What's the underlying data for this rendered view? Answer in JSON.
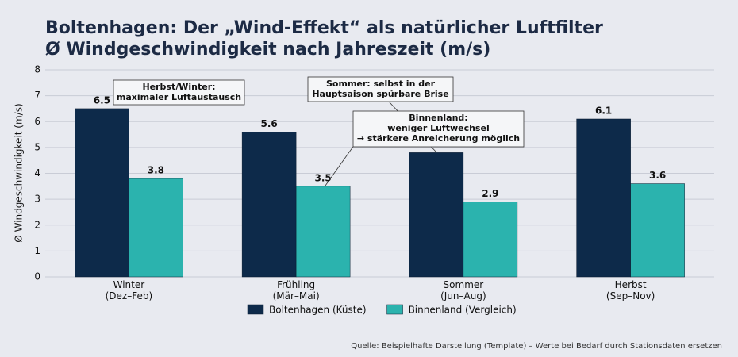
{
  "chart_data": {
    "type": "bar",
    "title": "Boltenhagen: Der „Wind-Effekt“ als natürlicher Luftfilter\nØ Windgeschwindigkeit nach Jahreszeit (m/s)",
    "y_label": "Ø Windgeschwindigkeit (m/s)",
    "categories": [
      "Winter\n(Dez–Feb)",
      "Frühling\n(Mär–Mai)",
      "Sommer\n(Jun–Aug)",
      "Herbst\n(Sep–Nov)"
    ],
    "series": [
      {
        "name": "Boltenhagen (Küste)",
        "color": "#0d2a4a",
        "values": [
          6.5,
          5.6,
          4.8,
          6.1
        ],
        "value_labels": [
          "6.5",
          "5.6",
          null,
          "6.1"
        ]
      },
      {
        "name": "Binnenland (Vergleich)",
        "color": "#2bb3ae",
        "values": [
          3.8,
          3.5,
          2.9,
          3.6
        ]
      }
    ],
    "ylim": [
      0,
      8
    ],
    "yticks": [
      0,
      1,
      2,
      3,
      4,
      5,
      6,
      7,
      8
    ],
    "grid": true,
    "legend": "bottom",
    "annotations": [
      "Herbst/Winter:\nmaximaler Luftaustausch",
      "Sommer: selbst in der\nHauptsaison spürbare Brise",
      "Binnenland:\nweniger Luftwechsel\n→ stärkere Anreicherung möglich"
    ],
    "source": "Quelle: Beispielhafte Darstellung (Template) – Werte bei Bedarf durch Stationsdaten ersetzen"
  }
}
